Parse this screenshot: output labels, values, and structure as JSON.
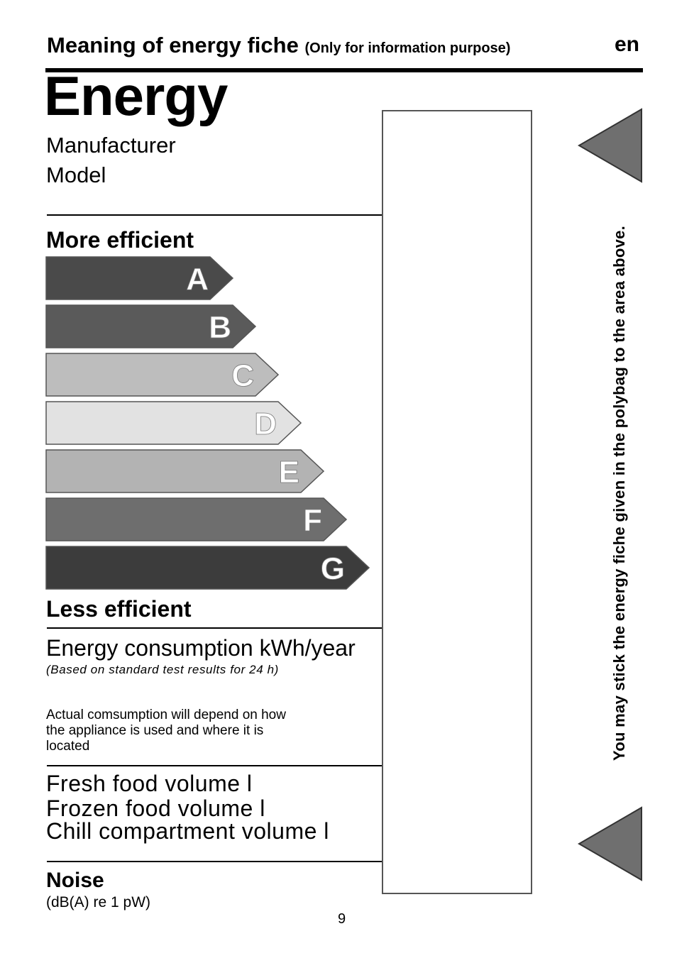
{
  "header": {
    "title": "Meaning of energy fiche",
    "subtitle": "(Only for information purpose)",
    "language": "en"
  },
  "label": {
    "title": "Energy",
    "manufacturer": "Manufacturer",
    "model": "Model",
    "more_efficient": "More efficient",
    "less_efficient": "Less efficient",
    "classes": [
      {
        "letter": "A",
        "shade": "#4a4a4a"
      },
      {
        "letter": "B",
        "shade": "#5a5a5a"
      },
      {
        "letter": "C",
        "shade": "#bdbdbd"
      },
      {
        "letter": "D",
        "shade": "#e2e2e2"
      },
      {
        "letter": "E",
        "shade": "#b3b3b3"
      },
      {
        "letter": "F",
        "shade": "#6e6e6e"
      },
      {
        "letter": "G",
        "shade": "#3c3c3c"
      }
    ],
    "consumption": "Energy consumption kWh/year",
    "consumption_note": "(Based on standard test results for 24 h)",
    "actual_consumption": "Actual comsumption will depend on how the appliance is used and where it is located",
    "fresh_food": "Fresh food volume l",
    "frozen_food": "Frozen food volume l",
    "chill": "Chill compartment volume l",
    "noise": "Noise",
    "noise_unit": "(dB(A) re 1 pW)"
  },
  "side": {
    "instruction": "You may stick the energy fiche given in the polybag to the area above."
  },
  "footer": {
    "page_number": "9"
  },
  "colors": {
    "triangle": "#6f6f6f",
    "box_border": "#555555"
  }
}
